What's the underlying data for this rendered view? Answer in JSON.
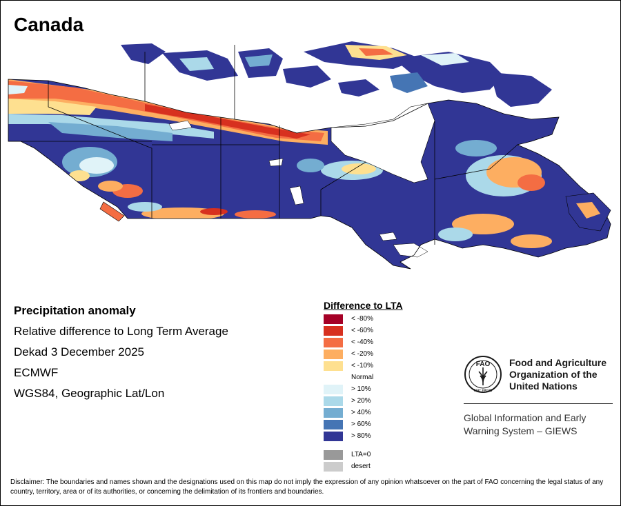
{
  "title": "Canada",
  "info": {
    "heading": "Precipitation anomaly",
    "subtitle": "Relative difference to Long Term Average",
    "period": "Dekad 3 December 2025",
    "source": "ECMWF",
    "projection": "WGS84, Geographic Lat/Lon"
  },
  "legend": {
    "title": "Difference to LTA",
    "items": [
      {
        "label": "< -80%",
        "color": "#a50026"
      },
      {
        "label": "< -60%",
        "color": "#d7301f"
      },
      {
        "label": "< -40%",
        "color": "#f46d43"
      },
      {
        "label": "< -20%",
        "color": "#fdae61"
      },
      {
        "label": "< -10%",
        "color": "#fee090"
      },
      {
        "label": "Normal",
        "color": "#ffffff"
      },
      {
        "label": "> 10%",
        "color": "#e0f3f8"
      },
      {
        "label": "> 20%",
        "color": "#abd9e9"
      },
      {
        "label": "> 40%",
        "color": "#74add1"
      },
      {
        "label": "> 60%",
        "color": "#4575b4"
      },
      {
        "label": "> 80%",
        "color": "#313695"
      },
      {
        "label": "LTA=0",
        "color": "#999999"
      },
      {
        "label": "desert",
        "color": "#cccccc"
      }
    ]
  },
  "fao": {
    "emblem_text": "FAO",
    "motto": "FIAT PANIS",
    "org_line1": "Food and Agriculture",
    "org_line2": "Organization of the",
    "org_line3": "United Nations",
    "giews_line1": "Global Information and Early",
    "giews_line2": "Warning System – GIEWS"
  },
  "disclaimer": "Disclaimer: The boundaries and names shown and the designations used on this map do not imply the expression of any opinion whatsoever on the part of FAO concerning the legal status of any country, territory, area or of its authorities, or concerning the delimitation of its frontiers and boundaries."
}
